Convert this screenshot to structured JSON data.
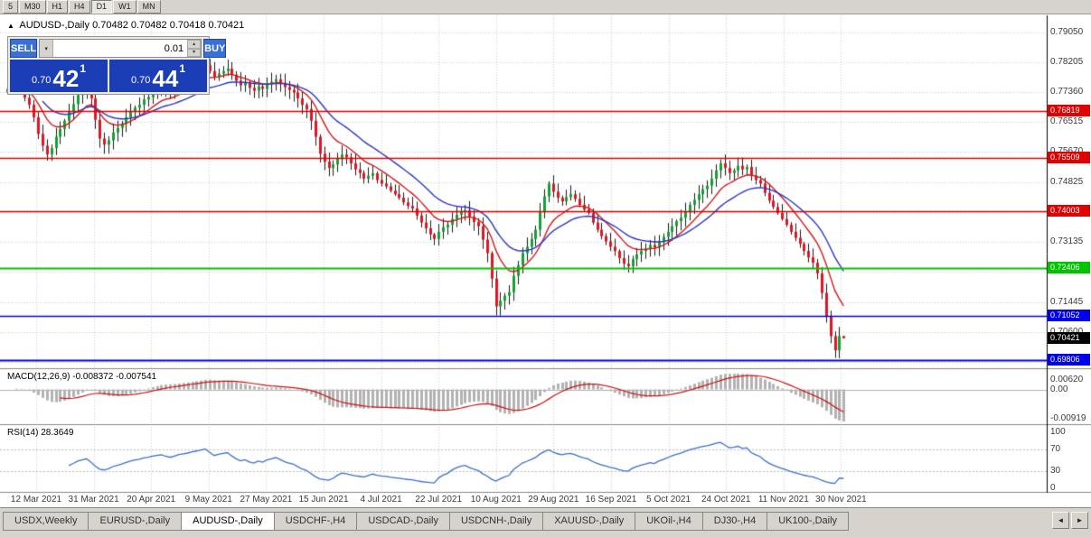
{
  "toolbar": {
    "timeframes": [
      "5",
      "M30",
      "H1",
      "H4",
      "D1",
      "W1",
      "MN"
    ],
    "active": "D1"
  },
  "chart": {
    "symbol": "AUDUSD-,Daily",
    "ohlc_text": "0.70482 0.70482 0.70418 0.70421",
    "tick_icon": "▲"
  },
  "trade_panel": {
    "sell_label": "SELL",
    "buy_label": "BUY",
    "lot": "0.01",
    "sell_price": {
      "prefix": "0.70",
      "big": "42",
      "sup": "1"
    },
    "buy_price": {
      "prefix": "0.70",
      "big": "44",
      "sup": "1"
    }
  },
  "indicators": {
    "macd": {
      "label": "MACD(12,26,9)",
      "values": "-0.008372 -0.007541",
      "axis": [
        "0.00620",
        "0.00",
        "-0.00919"
      ]
    },
    "rsi": {
      "label": "RSI(14)",
      "value": "28.3649",
      "axis": [
        "100",
        "70",
        "30",
        "0"
      ],
      "levels": [
        70,
        30
      ]
    }
  },
  "price_axis": {
    "ticks": [
      "0.79050",
      "0.78205",
      "0.77360",
      "0.76515",
      "0.75670",
      "0.74825",
      "0.73980",
      "0.73135",
      "0.72290",
      "0.71445",
      "0.70600",
      "0.69755"
    ]
  },
  "hlines": [
    {
      "price": 0.76819,
      "label": "0.76819",
      "color": "#e00000",
      "width": 1.4
    },
    {
      "price": 0.75509,
      "label": "0.75509",
      "color": "#e00000",
      "width": 1.4
    },
    {
      "price": 0.74003,
      "label": "0.74003",
      "color": "#e00000",
      "width": 1.4
    },
    {
      "price": 0.72406,
      "label": "0.72406",
      "color": "#00c400",
      "width": 2
    },
    {
      "price": 0.71052,
      "label": "0.71052",
      "color": "#0000ee",
      "width": 1.4
    },
    {
      "price": 0.69806,
      "label": "0.69806",
      "color": "#0000ee",
      "width": 2
    }
  ],
  "current_price": {
    "label": "0.70421",
    "value": 0.70421,
    "color": "#000000"
  },
  "date_axis": [
    "12 Mar 2021",
    "31 Mar 2021",
    "20 Apr 2021",
    "9 May 2021",
    "27 May 2021",
    "15 Jun 2021",
    "4 Jul 2021",
    "22 Jul 2021",
    "10 Aug 2021",
    "29 Aug 2021",
    "16 Sep 2021",
    "5 Oct 2021",
    "24 Oct 2021",
    "11 Nov 2021",
    "30 Nov 2021"
  ],
  "tabs": {
    "items": [
      "USDX,Weekly",
      "EURUSD-,Daily",
      "AUDUSD-,Daily",
      "USDCHF-,H4",
      "USDCAD-,Daily",
      "USDCNH-,Daily",
      "XAUUSD-,Daily",
      "UKOil-,H4",
      "DJ30-,H4",
      "UK100-,Daily"
    ],
    "active_index": 2,
    "scroll_left_icon": "◄",
    "scroll_right_icon": "►"
  },
  "colors": {
    "candle_up": "#0fa432",
    "candle_down": "#e31422",
    "ma_fast": "#cf1a1a",
    "ma_slow": "#2b35c0",
    "macd_hist": "#b2b2b2",
    "macd_signal": "#cc1111",
    "rsi_line": "#3a6fc9",
    "grid": "#cdcdcd",
    "buy_sell_button": "#3a6fd8",
    "price_box": "#1b3db5"
  },
  "chart_data": {
    "type": "candlestick",
    "symbol": "AUDUSD-,Daily",
    "ohlc_current": {
      "open": 0.70482,
      "high": 0.70482,
      "low": 0.70418,
      "close": 0.70421
    },
    "ma_fast": {
      "type": "EMA",
      "period": 10
    },
    "ma_slow": {
      "type": "EMA",
      "period": 21
    },
    "macd_params": [
      12,
      26,
      9
    ],
    "rsi_period": 14,
    "y_range": [
      0.6965,
      0.7924
    ],
    "closes": [
      0.7745,
      0.7758,
      0.7765,
      0.7742,
      0.772,
      0.77,
      0.7665,
      0.7618,
      0.7585,
      0.756,
      0.7578,
      0.761,
      0.7632,
      0.7655,
      0.768,
      0.7702,
      0.7728,
      0.7742,
      0.7755,
      0.7718,
      0.7658,
      0.7605,
      0.7588,
      0.76,
      0.7622,
      0.7635,
      0.7648,
      0.7665,
      0.768,
      0.7692,
      0.77,
      0.7715,
      0.7722,
      0.7735,
      0.7742,
      0.7748,
      0.7738,
      0.773,
      0.7742,
      0.7755,
      0.7762,
      0.777,
      0.7782,
      0.779,
      0.78,
      0.7812,
      0.7795,
      0.7778,
      0.7788,
      0.7795,
      0.7802,
      0.7785,
      0.7768,
      0.7755,
      0.7762,
      0.7748,
      0.774,
      0.7752,
      0.7745,
      0.7758,
      0.7765,
      0.7772,
      0.7762,
      0.775,
      0.7742,
      0.7735,
      0.7718,
      0.77,
      0.7688,
      0.7655,
      0.761,
      0.7562,
      0.754,
      0.7522,
      0.7532,
      0.7548,
      0.756,
      0.7552,
      0.7535,
      0.7518,
      0.7508,
      0.7492,
      0.75,
      0.7507,
      0.7488,
      0.7478,
      0.747,
      0.7458,
      0.7448,
      0.7438,
      0.7425,
      0.7415,
      0.7408,
      0.7388,
      0.7368,
      0.7352,
      0.7335,
      0.7322,
      0.7342,
      0.7355,
      0.7362,
      0.7378,
      0.739,
      0.7398,
      0.7403,
      0.7385,
      0.737,
      0.7358,
      0.732,
      0.7282,
      0.721,
      0.7132,
      0.7148,
      0.7162,
      0.7172,
      0.7218,
      0.7248,
      0.7282,
      0.73,
      0.7322,
      0.7348,
      0.7398,
      0.7442,
      0.7478,
      0.7455,
      0.7438,
      0.7428,
      0.744,
      0.7448,
      0.7435,
      0.7418,
      0.7405,
      0.7395,
      0.7368,
      0.7348,
      0.733,
      0.7315,
      0.73,
      0.7288,
      0.7268,
      0.7252,
      0.7245,
      0.7265,
      0.7278,
      0.7288,
      0.7295,
      0.7305,
      0.7298,
      0.7315,
      0.7328,
      0.7342,
      0.7358,
      0.7372,
      0.7382,
      0.74,
      0.7418,
      0.7432,
      0.7448,
      0.7462,
      0.7472,
      0.7492,
      0.7515,
      0.7535,
      0.7522,
      0.7508,
      0.7515,
      0.7528,
      0.7518,
      0.7525,
      0.75,
      0.7488,
      0.7478,
      0.7452,
      0.743,
      0.7412,
      0.7395,
      0.7378,
      0.7362,
      0.7342,
      0.7325,
      0.7308,
      0.7288,
      0.727,
      0.7255,
      0.7225,
      0.717,
      0.7105,
      0.7048,
      0.7008,
      0.70482,
      0.70421
    ]
  }
}
